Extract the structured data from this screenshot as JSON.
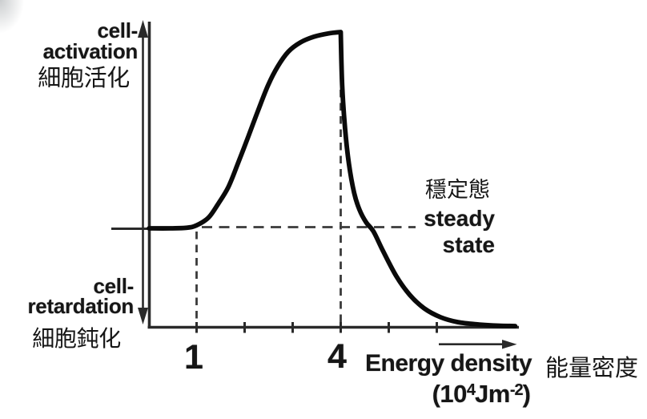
{
  "figure": {
    "background": "#ffffff",
    "ink_color": "#2a2a2a",
    "curve_color": "#0a0a0a",
    "dash_color": "#3a3a3a",
    "top_label": {
      "line1": "cell-",
      "line2": "activation",
      "zh": "細胞活化"
    },
    "bottom_label": {
      "line1": "cell-",
      "line2": "retardation",
      "zh": "細胞鈍化"
    },
    "steady_label": {
      "zh": "穩定態",
      "line1": "steady",
      "line2": "state"
    },
    "x_label": {
      "en": "Energy density",
      "zh": "能量密度"
    },
    "units": {
      "p1": "(10",
      "sup1": "4",
      "p2": "Jm",
      "sup2": "-2",
      "p3": ")"
    }
  },
  "chart_data": {
    "type": "line",
    "x_axis": {
      "label": "Energy density (10^4 Jm^-2)",
      "label_zh": "能量密度",
      "range": [
        0,
        7.7
      ],
      "ticks": [
        1,
        2,
        3,
        4,
        5,
        6
      ],
      "labeled_ticks": [
        {
          "value": 1,
          "label": "1"
        },
        {
          "value": 4,
          "label": "4"
        }
      ]
    },
    "y_axis": {
      "top_direction_label": "cell-activation 細胞活化",
      "bottom_direction_label": "cell-retardation 細胞鈍化",
      "reference_line": {
        "label": "steady state 穩定態",
        "value": 0
      },
      "scale_note": "qualitative scale: 0 = steady state, 1 = peak activation"
    },
    "series": [
      {
        "name": "cell response curve",
        "segments": {
          "rise": [
            [
              0.01,
              0
            ],
            [
              0.45,
              0
            ],
            [
              0.8,
              0.003
            ],
            [
              1.0,
              0.015
            ],
            [
              1.25,
              0.055
            ],
            [
              1.45,
              0.125
            ],
            [
              1.66,
              0.21
            ],
            [
              1.86,
              0.33
            ],
            [
              2.08,
              0.47
            ],
            [
              2.28,
              0.6
            ],
            [
              2.49,
              0.73
            ],
            [
              2.69,
              0.825
            ],
            [
              2.91,
              0.9
            ],
            [
              3.16,
              0.947
            ],
            [
              3.44,
              0.976
            ],
            [
              3.75,
              0.993
            ],
            [
              4.0,
              1.0
            ]
          ],
          "fall": [
            [
              4.0,
              1.0
            ],
            [
              4.03,
              0.73
            ],
            [
              4.09,
              0.51
            ],
            [
              4.17,
              0.33
            ],
            [
              4.28,
              0.18
            ],
            [
              4.39,
              0.095
            ],
            [
              4.53,
              0.03
            ],
            [
              4.68,
              -0.015
            ],
            [
              4.88,
              -0.115
            ],
            [
              5.16,
              -0.245
            ],
            [
              5.44,
              -0.34
            ],
            [
              5.74,
              -0.408
            ],
            [
              6.08,
              -0.453
            ],
            [
              6.44,
              -0.478
            ],
            [
              6.88,
              -0.49
            ],
            [
              7.28,
              -0.496
            ],
            [
              7.63,
              -0.498
            ]
          ]
        }
      }
    ],
    "guides": {
      "horizontal_dash_at_y": 0,
      "vertical_dash_at_x": [
        1,
        4
      ]
    },
    "peak": {
      "x": 4,
      "y": 1
    },
    "activation_onset": {
      "x": 1,
      "y": 0
    }
  }
}
